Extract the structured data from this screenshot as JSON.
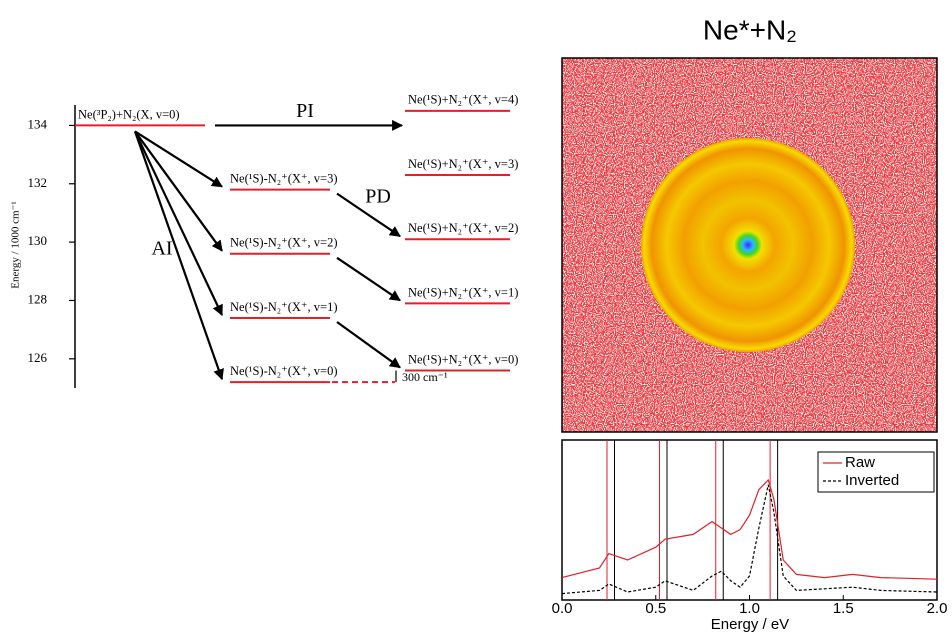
{
  "diagram": {
    "axis_label": "Energy / 1000 cm⁻¹",
    "ylim": [
      125,
      134.7
    ],
    "yticks": [
      126,
      128,
      130,
      132,
      134
    ],
    "initial": {
      "label": "Ne(³P₂)+N₂(X, v=0)",
      "energy": 134
    },
    "ai_levels": [
      {
        "label": "Ne(¹S)-N₂⁺(X⁺, v=3)",
        "energy": 131.8
      },
      {
        "label": "Ne(¹S)-N₂⁺(X⁺, v=2)",
        "energy": 129.6
      },
      {
        "label": "Ne(¹S)-N₂⁺(X⁺, v=1)",
        "energy": 127.4
      },
      {
        "label": "Ne(¹S)-N₂⁺(X⁺, v=0)",
        "energy": 125.2
      }
    ],
    "product_levels": [
      {
        "label": "Ne(¹S)+N₂⁺(X⁺, v=4)",
        "energy": 134.5
      },
      {
        "label": "Ne(¹S)+N₂⁺(X⁺, v=3)",
        "energy": 132.3
      },
      {
        "label": "Ne(¹S)+N₂⁺(X⁺, v=2)",
        "energy": 130.1
      },
      {
        "label": "Ne(¹S)+N₂⁺(X⁺, v=1)",
        "energy": 127.9
      },
      {
        "label": "Ne(¹S)+N₂⁺(X⁺, v=0)",
        "energy": 125.6
      }
    ],
    "pi_label": "PI",
    "ai_label": "AI",
    "pd_label": "PD",
    "gap_label": "300 cm⁻¹"
  },
  "image": {
    "title": "Ne*+N₂"
  },
  "chart_data": {
    "type": "line",
    "x_label": "Energy / eV",
    "xlim": [
      0,
      2
    ],
    "xticks": [
      {
        "value": 0,
        "label": "0.0"
      },
      {
        "value": 0.5,
        "label": "0.5"
      },
      {
        "value": 1,
        "label": "1.0"
      },
      {
        "value": 1.5,
        "label": "1.5"
      },
      {
        "value": 2,
        "label": "2.0"
      }
    ],
    "ylim": [
      0,
      1
    ],
    "x": [
      0,
      0.2,
      0.25,
      0.35,
      0.5,
      0.55,
      0.7,
      0.8,
      0.85,
      0.9,
      0.95,
      1.0,
      1.05,
      1.1,
      1.13,
      1.18,
      1.25,
      1.4,
      1.55,
      1.7,
      2.0
    ],
    "series": [
      {
        "name": "Raw",
        "color": "#e0202a",
        "dash": false,
        "values": [
          0.14,
          0.2,
          0.29,
          0.25,
          0.33,
          0.38,
          0.41,
          0.49,
          0.45,
          0.41,
          0.44,
          0.53,
          0.69,
          0.75,
          0.63,
          0.25,
          0.16,
          0.14,
          0.16,
          0.14,
          0.13
        ]
      },
      {
        "name": "Inverted",
        "color": "#000000",
        "dash": true,
        "values": [
          0.04,
          0.06,
          0.1,
          0.05,
          0.08,
          0.12,
          0.06,
          0.15,
          0.18,
          0.12,
          0.08,
          0.15,
          0.45,
          0.72,
          0.55,
          0.15,
          0.06,
          0.07,
          0.08,
          0.06,
          0.05
        ]
      }
    ],
    "vlines": [
      {
        "color": "#e0202a",
        "x": [
          0.24,
          0.52,
          0.82,
          1.11
        ]
      },
      {
        "color": "#000000",
        "x": [
          0.28,
          0.56,
          0.86,
          1.15
        ]
      }
    ]
  }
}
